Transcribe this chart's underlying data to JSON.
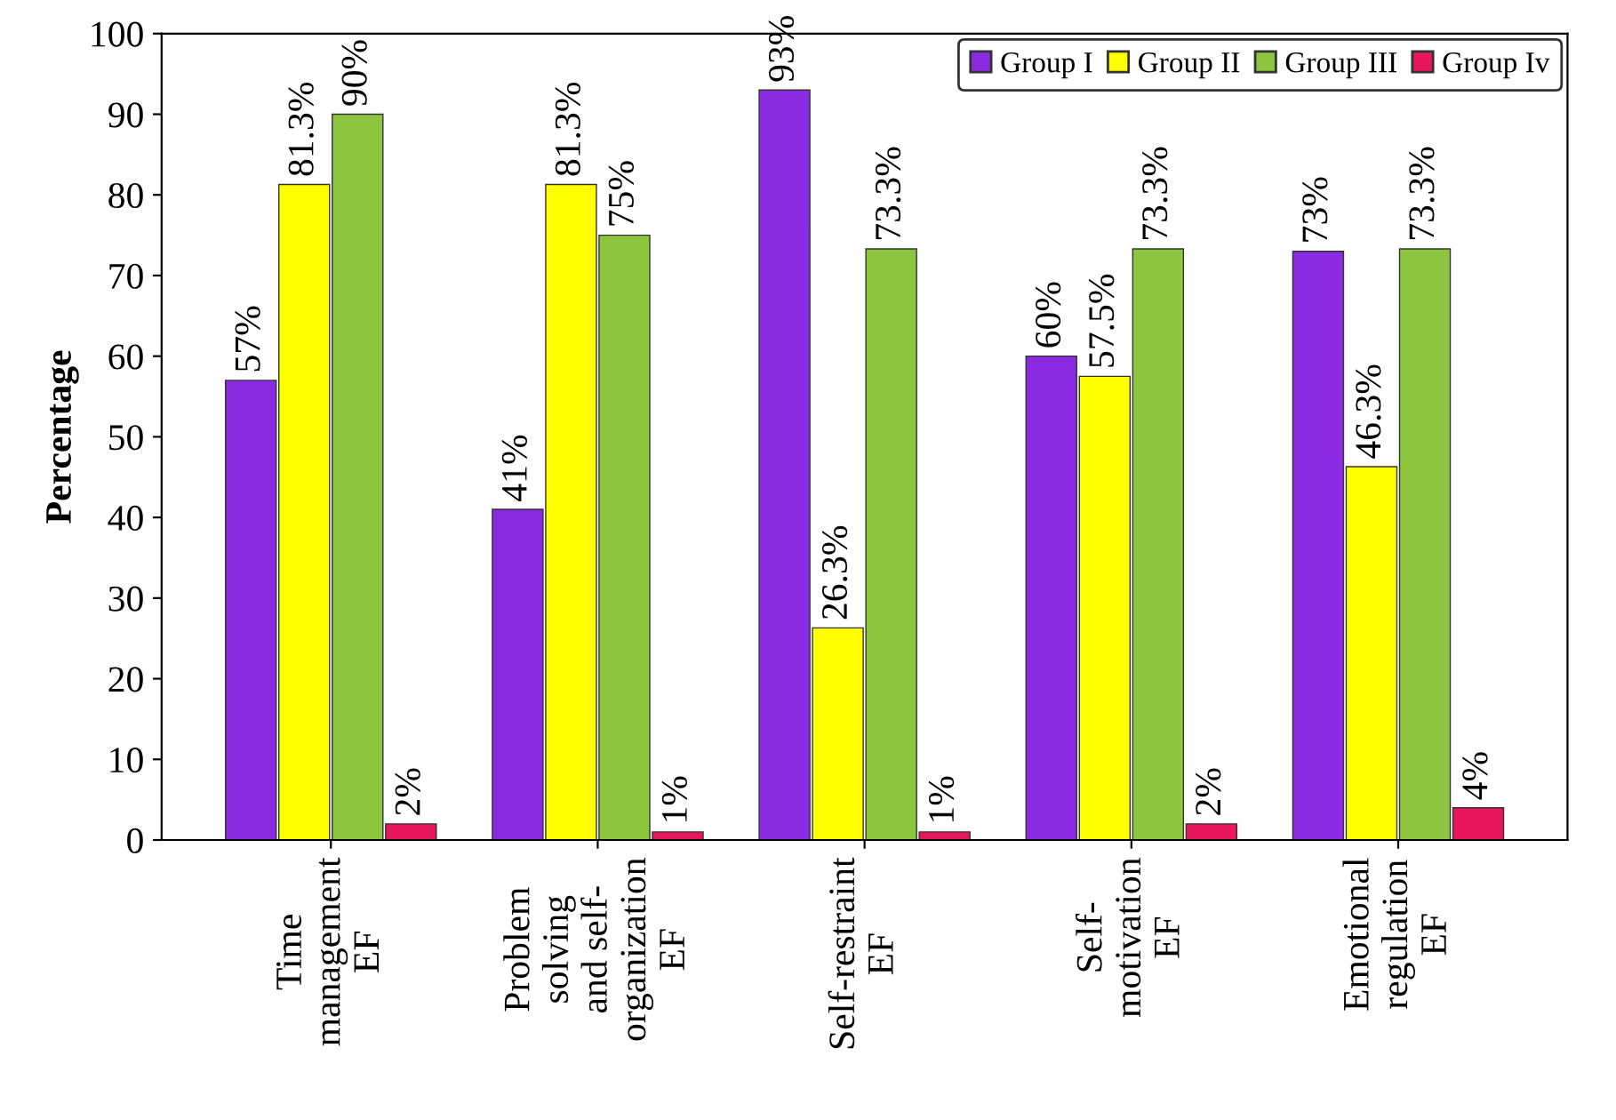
{
  "chart_data": {
    "type": "bar",
    "ylabel": "Percentage",
    "categories": [
      "Time\nmanagement\nEF",
      "Problem\nsolving\nand self-\norganization\nEF",
      "Self-restraint\nEF",
      "Self-\nmotivation\nEF",
      "Emotional\nregulation\nEF"
    ],
    "series": [
      {
        "name": "Group I",
        "color": "#8a2be2",
        "values": [
          57,
          41,
          93,
          60,
          73
        ],
        "value_labels": [
          "57%",
          "41%",
          "93%",
          "60%",
          "73%"
        ]
      },
      {
        "name": "Group II",
        "color": "#ffff00",
        "values": [
          81.3,
          81.3,
          26.3,
          57.5,
          46.3
        ],
        "value_labels": [
          "81.3%",
          "81.3%",
          "26.3%",
          "57.5%",
          "46.3%"
        ]
      },
      {
        "name": "Group III",
        "color": "#8cc63f",
        "values": [
          90,
          75,
          73.3,
          73.3,
          73.3
        ],
        "value_labels": [
          "90%",
          "75%",
          "73.3%",
          "73.3%",
          "73.3%"
        ]
      },
      {
        "name": "Group Iv",
        "color": "#e8175d",
        "values": [
          2,
          1,
          1,
          2,
          4
        ],
        "value_labels": [
          "2%",
          "1%",
          "1%",
          "2%",
          "4%"
        ]
      }
    ],
    "ylim": [
      0,
      100
    ],
    "yticks": [
      0,
      10,
      20,
      30,
      40,
      50,
      60,
      70,
      80,
      90,
      100
    ],
    "grid": false,
    "legend": "top right"
  }
}
